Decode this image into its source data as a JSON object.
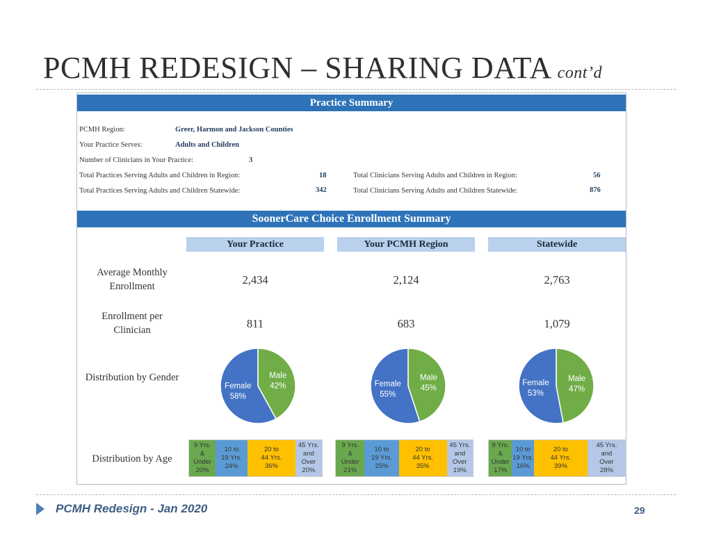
{
  "title": {
    "main": "PCMH REDESIGN – SHARING DATA",
    "sub": "cont’d"
  },
  "practice_summary": {
    "header": "Practice Summary",
    "region_label": "PCMH Region:",
    "region_value": "Greer, Harmon and Jackson Counties",
    "serves_label": "Your Practice Serves:",
    "serves_value": "Adults and Children",
    "clinicians_label": "Number of Clinicians in Your Practice:",
    "clinicians_value": "3",
    "practices_region_label": "Total Practices Serving Adults and Children in Region:",
    "practices_region_value": "18",
    "practices_state_label": "Total Practices Serving Adults and Children Statewide:",
    "practices_state_value": "342",
    "clinicians_region_label": "Total Clinicians Serving Adults and Children in Region:",
    "clinicians_region_value": "56",
    "clinicians_state_label": "Total Clinicians Serving Adults and Children Statewide:",
    "clinicians_state_value": "876"
  },
  "enrollment": {
    "header": "SoonerCare Choice Enrollment Summary",
    "columns": [
      "Your Practice",
      "Your PCMH Region",
      "Statewide"
    ],
    "rows": {
      "avg_label": "Average Monthly Enrollment",
      "avg_values": [
        "2,434",
        "2,124",
        "2,763"
      ],
      "per_clin_label": "Enrollment per Clinician",
      "per_clin_values": [
        "811",
        "683",
        "1,079"
      ],
      "gender_label": "Distribution by Gender",
      "age_label": "Distribution by Age"
    }
  },
  "gender_pies": [
    {
      "female_label": "Female",
      "female_pct": "58%",
      "female": 58,
      "male_label": "Male",
      "male_pct": "42%",
      "male": 42
    },
    {
      "female_label": "Female",
      "female_pct": "55%",
      "female": 55,
      "male_label": "Male",
      "male_pct": "45%",
      "male": 45
    },
    {
      "female_label": "Female",
      "female_pct": "53%",
      "female": 53,
      "male_label": "Male",
      "male_pct": "47%",
      "male": 47
    }
  ],
  "age_blocks": [
    {
      "cells": [
        {
          "label": "9 Yrs.\n&\nUnder\n20%",
          "value": 20,
          "color": "#6aa84f"
        },
        {
          "label": "10 to\n19 Yrs.\n24%",
          "value": 24,
          "color": "#5b9bd5"
        },
        {
          "label": "20 to\n44 Yrs.\n36%",
          "value": 36,
          "color": "#ffc000"
        },
        {
          "label": "45 Yrs.\nand\nOver\n20%",
          "value": 20,
          "color": "#b4c7e7"
        }
      ]
    },
    {
      "cells": [
        {
          "label": "9 Yrs.\n&\nUnder\n21%",
          "value": 21,
          "color": "#6aa84f"
        },
        {
          "label": "10 to\n19 Yrs.\n25%",
          "value": 25,
          "color": "#5b9bd5"
        },
        {
          "label": "20 to\n44 Yrs.\n35%",
          "value": 35,
          "color": "#ffc000"
        },
        {
          "label": "45 Yrs.\nand\nOver\n19%",
          "value": 19,
          "color": "#b4c7e7"
        }
      ]
    },
    {
      "cells": [
        {
          "label": "9 Yrs.\n&\nUnder\n17%",
          "value": 17,
          "color": "#6aa84f"
        },
        {
          "label": "10 to\n19 Yrs.\n16%",
          "value": 16,
          "color": "#5b9bd5"
        },
        {
          "label": "20 to\n44 Yrs.\n39%",
          "value": 39,
          "color": "#ffc000"
        },
        {
          "label": "45 Yrs.\nand\nOver\n28%",
          "value": 28,
          "color": "#b4c7e7"
        }
      ]
    }
  ],
  "colors": {
    "female": "#4472c4",
    "male": "#70ad47",
    "band": "#2e73b8",
    "column_header": "#b9d1ec"
  },
  "footer": {
    "text": "PCMH Redesign - Jan 2020",
    "page": "29"
  }
}
